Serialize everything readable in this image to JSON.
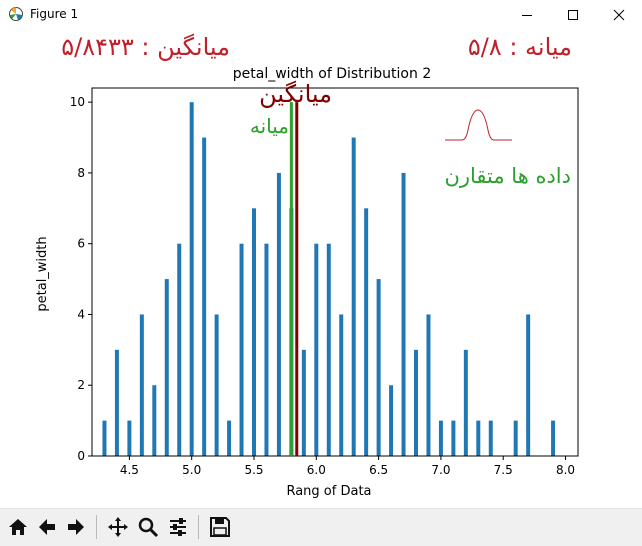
{
  "window": {
    "title": "Figure 1"
  },
  "annotations": {
    "mean_header": "میانگین :  ۵/۸۴۳۳",
    "median_header": "میانه :  ۵/۸",
    "mean_label": "میانگین",
    "median_label": "میانه",
    "symmetric_label": "داده ها متقارن"
  },
  "colors": {
    "bars": "#1f77b4",
    "mean_line": "#800000",
    "median_line": "#2ca02c",
    "header_text": "#c0202a",
    "mean_label_text": "#800000",
    "green_text": "#2ca02c"
  },
  "toolbar": {
    "icons": [
      "home-icon",
      "back-arrow-icon",
      "forward-arrow-icon",
      "pan-icon",
      "zoom-icon",
      "configure-subplots-icon",
      "save-icon"
    ]
  },
  "chart_data": {
    "type": "bar",
    "title": "petal_width of Distribution 2",
    "xlabel": "Rang of Data",
    "ylabel": "petal_width",
    "xlim": [
      4.2,
      8.1
    ],
    "ylim": [
      0,
      10.4
    ],
    "xticks": [
      "4.5",
      "5.0",
      "5.5",
      "6.0",
      "6.5",
      "7.0",
      "7.5",
      "8.0"
    ],
    "yticks": [
      "0",
      "2",
      "4",
      "6",
      "8",
      "10"
    ],
    "bin_width": 0.032,
    "x": [
      4.3,
      4.4,
      4.5,
      4.6,
      4.7,
      4.8,
      4.9,
      5.0,
      5.1,
      5.2,
      5.3,
      5.4,
      5.5,
      5.6,
      5.7,
      5.8,
      5.9,
      6.0,
      6.1,
      6.2,
      6.3,
      6.4,
      6.5,
      6.6,
      6.7,
      6.8,
      6.9,
      7.0,
      7.1,
      7.2,
      7.3,
      7.4,
      7.6,
      7.7,
      7.9
    ],
    "values": [
      1,
      3,
      1,
      4,
      2,
      5,
      6,
      10,
      9,
      4,
      1,
      6,
      7,
      6,
      8,
      7,
      3,
      6,
      6,
      4,
      9,
      7,
      5,
      2,
      8,
      3,
      4,
      1,
      1,
      3,
      1,
      1,
      1,
      4,
      1
    ],
    "mean": 5.8433,
    "median": 5.8
  }
}
